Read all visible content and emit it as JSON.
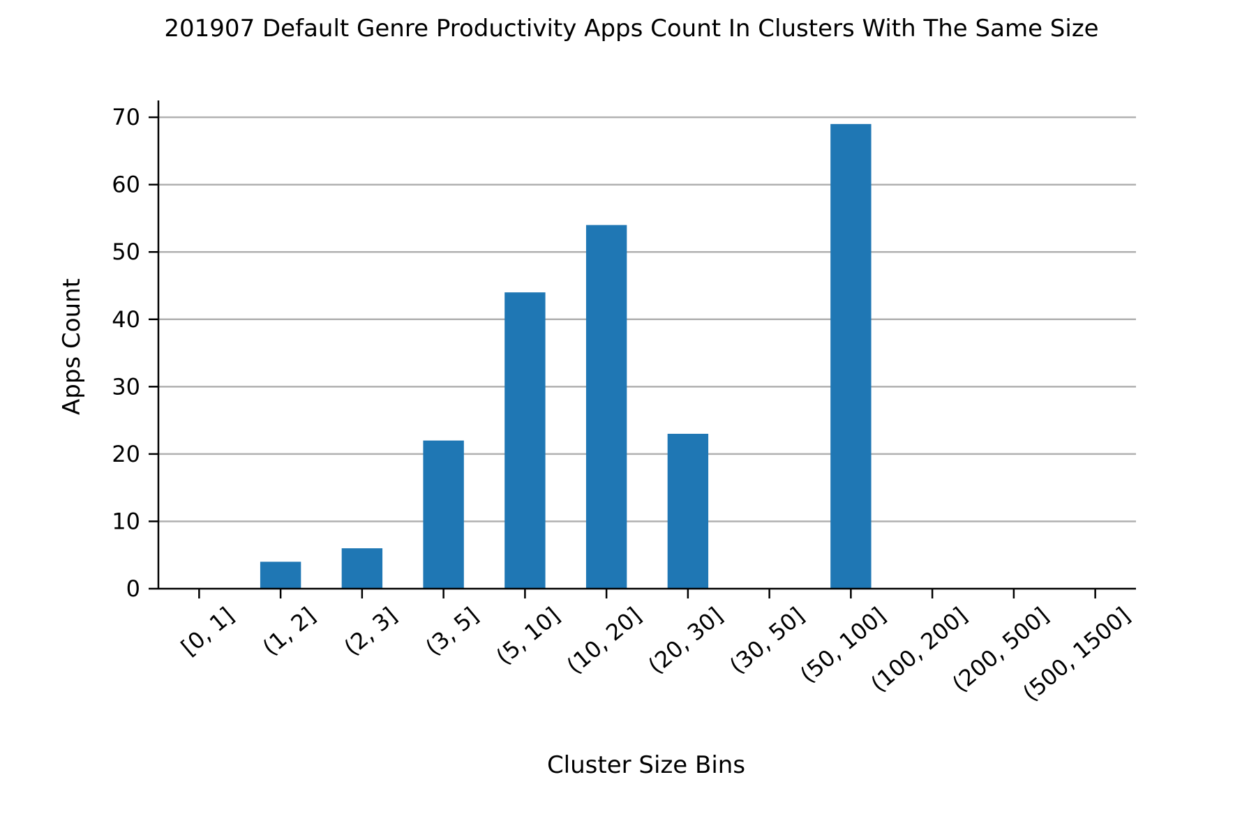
{
  "chart_data": {
    "type": "bar",
    "title": "201907 Default Genre Productivity Apps Count In Clusters With The Same Size",
    "xlabel": "Cluster Size Bins",
    "ylabel": "Apps Count",
    "categories": [
      "[0, 1]",
      "(1, 2]",
      "(2, 3]",
      "(3, 5]",
      "(5, 10]",
      "(10, 20]",
      "(20, 30]",
      "(30, 50]",
      "(50, 100]",
      "(100, 200]",
      "(200, 500]",
      "(500, 1500]"
    ],
    "values": [
      0,
      4,
      6,
      22,
      44,
      54,
      23,
      0,
      69,
      0,
      0,
      0
    ],
    "ylim": [
      0,
      72.5
    ],
    "yticks": [
      0,
      10,
      20,
      30,
      40,
      50,
      60,
      70
    ],
    "grid": "horizontal",
    "colors": {
      "bar": "#1f77b4"
    }
  }
}
